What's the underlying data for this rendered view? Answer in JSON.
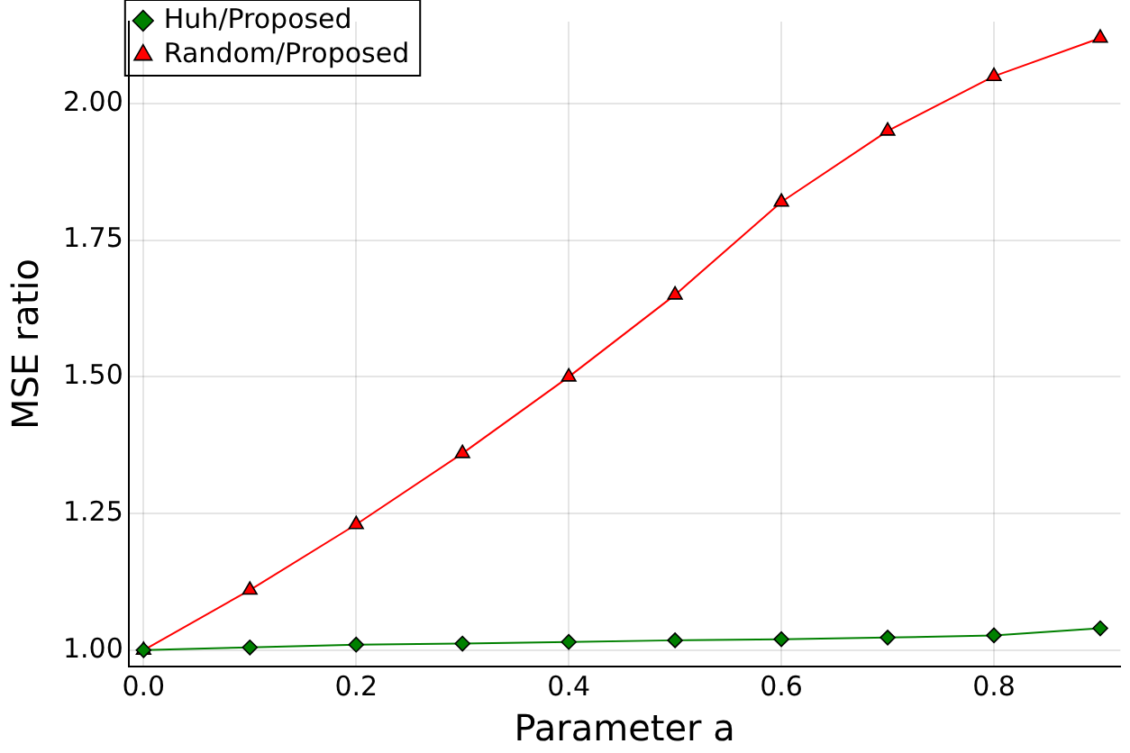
{
  "chart_data": {
    "type": "line",
    "xlabel": "Parameter a",
    "ylabel": "MSE ratio",
    "x": [
      0,
      0.1,
      0.2,
      0.3,
      0.4,
      0.5,
      0.6,
      0.7,
      0.8,
      0.9
    ],
    "series": [
      {
        "name": "Random/Proposed",
        "color": "#ff0000",
        "marker": "triangle",
        "values": [
          1.0,
          1.11,
          1.23,
          1.36,
          1.5,
          1.65,
          1.82,
          1.95,
          2.05,
          2.12
        ]
      },
      {
        "name": "Huh/Proposed",
        "color": "#008000",
        "marker": "diamond",
        "values": [
          1.0,
          1.005,
          1.01,
          1.012,
          1.015,
          1.018,
          1.02,
          1.023,
          1.027,
          1.04
        ]
      }
    ],
    "xlim": [
      -0.014,
      0.919
    ],
    "xticks": [
      {
        "value": 0,
        "label": "0.0"
      },
      0.2,
      0.4,
      0.6,
      0.8
    ],
    "ylim": [
      0.97,
      2.15
    ],
    "yticks": [
      {
        "value": 1,
        "label": "1.00"
      },
      1.25,
      {
        "value": 1.5,
        "label": "1.50"
      },
      1.75,
      {
        "value": 2,
        "label": "2.00"
      }
    ],
    "grid": true,
    "legend": "top left",
    "line_style": "solid"
  }
}
